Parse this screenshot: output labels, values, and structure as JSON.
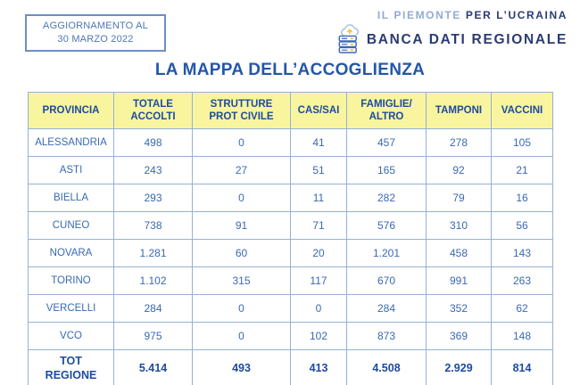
{
  "update_box": {
    "line1": "AGGIORNAMENTO AL",
    "line2": "30 MARZO 2022"
  },
  "brand": {
    "line1_light": "IL PIEMONTE",
    "line1_bold": "PER L’UCRAINA",
    "line2": "BANCA DATI REGIONALE",
    "icon": "cloud-database-icon"
  },
  "title": "LA MAPPA DELL’ACCOGLIENZA",
  "colors": {
    "header_yellow": "#f8f59e",
    "table_border": "#93b2d6",
    "data_blue": "#3a69b3",
    "dark_blue": "#1d4ba0",
    "title_blue": "#2456a8",
    "brand_navy": "#2b3b72",
    "brand_light_blue": "#93abd1",
    "icon_yellow": "#f2c230"
  },
  "table": {
    "columns": [
      "PROVINCIA",
      "TOTALE\nACCOLTI",
      "STRUTTURE\nPROT CIVILE",
      "CAS/SAI",
      "FAMIGLIE/\nALTRO",
      "TAMPONI",
      "VACCINI"
    ],
    "rows": [
      {
        "provincia": "ALESSANDRIA",
        "values": [
          "498",
          "0",
          "41",
          "457",
          "278",
          "105"
        ]
      },
      {
        "provincia": "ASTI",
        "values": [
          "243",
          "27",
          "51",
          "165",
          "92",
          "21"
        ]
      },
      {
        "provincia": "BIELLA",
        "values": [
          "293",
          "0",
          "11",
          "282",
          "79",
          "16"
        ]
      },
      {
        "provincia": "CUNEO",
        "values": [
          "738",
          "91",
          "71",
          "576",
          "310",
          "56"
        ]
      },
      {
        "provincia": "NOVARA",
        "values": [
          "1.281",
          "60",
          "20",
          "1.201",
          "458",
          "143"
        ]
      },
      {
        "provincia": "TORINO",
        "values": [
          "1.102",
          "315",
          "117",
          "670",
          "991",
          "263"
        ]
      },
      {
        "provincia": "VERCELLI",
        "values": [
          "284",
          "0",
          "0",
          "284",
          "352",
          "62"
        ]
      },
      {
        "provincia": "VCO",
        "values": [
          "975",
          "0",
          "102",
          "873",
          "369",
          "148"
        ]
      }
    ],
    "total_row": {
      "provincia": "TOT\nREGIONE",
      "values": [
        "5.414",
        "493",
        "413",
        "4.508",
        "2.929",
        "814"
      ]
    }
  },
  "chart_data": {
    "type": "table",
    "title": "LA MAPPA DELL’ACCOGLIENZA",
    "subtitle": "AGGIORNAMENTO AL 30 MARZO 2022",
    "categories": [
      "ALESSANDRIA",
      "ASTI",
      "BIELLA",
      "CUNEO",
      "NOVARA",
      "TORINO",
      "VERCELLI",
      "VCO"
    ],
    "series": [
      {
        "name": "TOTALE ACCOLTI",
        "values": [
          498,
          243,
          293,
          738,
          1281,
          1102,
          284,
          975
        ],
        "total": 5414
      },
      {
        "name": "STRUTTURE PROT CIVILE",
        "values": [
          0,
          27,
          0,
          91,
          60,
          315,
          0,
          0
        ],
        "total": 493
      },
      {
        "name": "CAS/SAI",
        "values": [
          41,
          51,
          11,
          71,
          20,
          117,
          0,
          102
        ],
        "total": 413
      },
      {
        "name": "FAMIGLIE/ALTRO",
        "values": [
          457,
          165,
          282,
          576,
          1201,
          670,
          284,
          873
        ],
        "total": 4508
      },
      {
        "name": "TAMPONI",
        "values": [
          278,
          92,
          79,
          310,
          458,
          991,
          352,
          369
        ],
        "total": 2929
      },
      {
        "name": "VACCINI",
        "values": [
          105,
          21,
          16,
          56,
          143,
          263,
          62,
          148
        ],
        "total": 814
      }
    ],
    "total_row_label": "TOT REGIONE"
  }
}
